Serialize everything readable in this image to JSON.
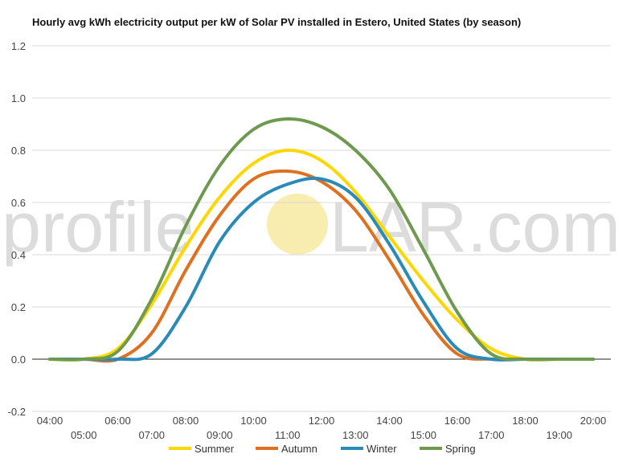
{
  "chart_data": {
    "type": "line",
    "title": "Hourly avg kWh electricity output per kW of Solar PV installed in Estero, United States (by season)",
    "watermark": {
      "left": "profile",
      "right": "LAR.com",
      "sun_color": "#f7e9a0"
    },
    "xlabel": "",
    "ylabel": "",
    "x": [
      "04:00",
      "05:00",
      "06:00",
      "07:00",
      "08:00",
      "09:00",
      "10:00",
      "11:00",
      "12:00",
      "13:00",
      "14:00",
      "15:00",
      "16:00",
      "17:00",
      "18:00",
      "19:00",
      "20:00"
    ],
    "ylim": [
      -0.2,
      1.2
    ],
    "yticks": [
      "-0.2",
      "0.0",
      "0.2",
      "0.4",
      "0.6",
      "0.8",
      "1.0",
      "1.2"
    ],
    "grid": true,
    "legend_position": "bottom",
    "series": [
      {
        "name": "Summer",
        "color": "#ffd700",
        "values": [
          0.0,
          0.0,
          0.04,
          0.21,
          0.43,
          0.62,
          0.75,
          0.8,
          0.76,
          0.64,
          0.47,
          0.3,
          0.15,
          0.04,
          0.0,
          0.0,
          0.0
        ]
      },
      {
        "name": "Autumn",
        "color": "#e07020",
        "values": [
          0.0,
          0.0,
          0.0,
          0.1,
          0.34,
          0.55,
          0.69,
          0.72,
          0.68,
          0.57,
          0.38,
          0.17,
          0.02,
          0.0,
          0.0,
          0.0,
          0.0
        ]
      },
      {
        "name": "Winter",
        "color": "#2a8ab8",
        "values": [
          0.0,
          0.0,
          0.0,
          0.02,
          0.2,
          0.45,
          0.6,
          0.67,
          0.69,
          0.62,
          0.44,
          0.22,
          0.04,
          0.0,
          0.0,
          0.0,
          0.0
        ]
      },
      {
        "name": "Spring",
        "color": "#6e9a50",
        "values": [
          0.0,
          0.0,
          0.03,
          0.23,
          0.51,
          0.74,
          0.88,
          0.92,
          0.89,
          0.8,
          0.65,
          0.42,
          0.18,
          0.02,
          0.0,
          0.0,
          0.0
        ]
      }
    ]
  }
}
